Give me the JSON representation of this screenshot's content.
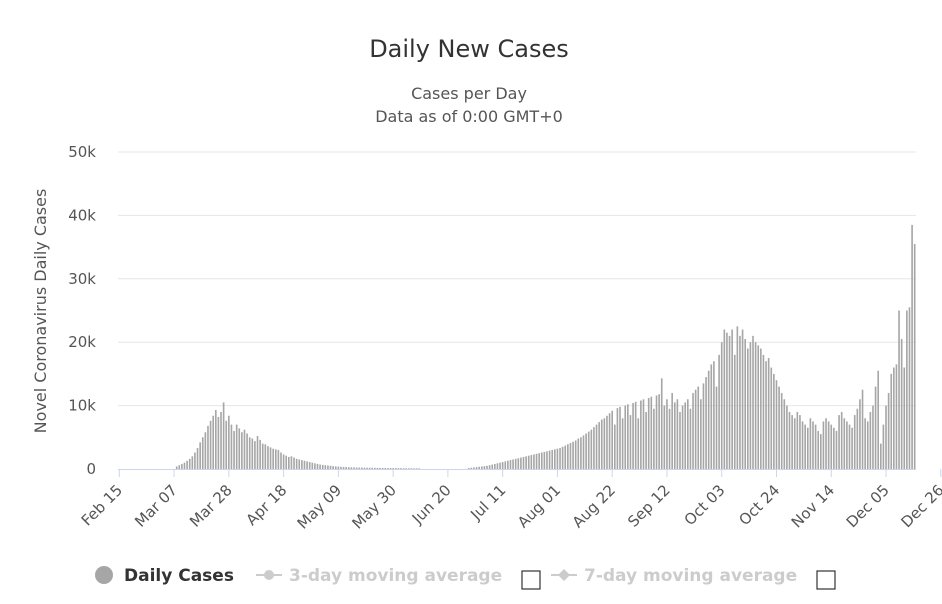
{
  "chart_data": {
    "type": "bar",
    "title": "Daily New Cases",
    "subtitle_lines": [
      "Cases per Day",
      "Data as of 0:00 GMT+0"
    ],
    "ylabel": "Novel Coronavirus Daily Cases",
    "xlabel": "",
    "ylim": [
      0,
      50000
    ],
    "yticks": [
      0,
      10000,
      20000,
      30000,
      40000,
      50000
    ],
    "ytick_labels": [
      "0",
      "10k",
      "20k",
      "30k",
      "40k",
      "50k"
    ],
    "xtick_labels": [
      "Feb 15",
      "Mar 07",
      "Mar 28",
      "Apr 18",
      "May 09",
      "May 30",
      "Jun 20",
      "Jul 11",
      "Aug 01",
      "Aug 22",
      "Sep 12",
      "Oct 03",
      "Oct 24",
      "Nov 14",
      "Dec 05",
      "Dec 26"
    ],
    "xtick_interval_days": 21,
    "grid": true,
    "legend_position": "bottom",
    "colors": {
      "bars": "#a6a6a6",
      "grid": "#e6e6e6",
      "axis": "#ccd6eb",
      "legend_active": "#333333",
      "legend_inactive": "#cccccc"
    },
    "series": [
      {
        "name": "Daily Cases",
        "start_date": "Feb 15",
        "values": [
          0,
          0,
          0,
          0,
          0,
          0,
          0,
          0,
          0,
          0,
          0,
          0,
          0,
          0,
          0,
          0,
          0,
          0,
          0,
          0,
          0,
          0,
          400,
          600,
          800,
          1000,
          1300,
          1600,
          2000,
          2600,
          3300,
          4200,
          5000,
          5800,
          6800,
          7600,
          8400,
          9300,
          8200,
          9000,
          10500,
          7600,
          8400,
          7000,
          6000,
          7000,
          6400,
          5800,
          6200,
          5600,
          5000,
          4800,
          4400,
          5200,
          4600,
          4000,
          3900,
          3600,
          3400,
          3200,
          3100,
          3000,
          2600,
          2300,
          2100,
          1900,
          2000,
          1800,
          1600,
          1500,
          1400,
          1300,
          1200,
          1100,
          1000,
          900,
          800,
          700,
          650,
          600,
          550,
          500,
          450,
          400,
          380,
          350,
          320,
          300,
          280,
          260,
          250,
          240,
          230,
          220,
          210,
          200,
          200,
          190,
          180,
          170,
          170,
          160,
          160,
          150,
          150,
          140,
          140,
          130,
          130,
          120,
          120,
          110,
          110,
          110,
          100,
          100,
          0,
          0,
          0,
          0,
          0,
          0,
          0,
          0,
          0,
          0,
          0,
          0,
          0,
          0,
          0,
          0,
          0,
          0,
          150,
          200,
          250,
          300,
          350,
          400,
          450,
          500,
          600,
          700,
          800,
          900,
          1000,
          1100,
          1200,
          1300,
          1400,
          1500,
          1600,
          1700,
          1800,
          1900,
          2000,
          2100,
          2200,
          2300,
          2400,
          2500,
          2600,
          2700,
          2800,
          2900,
          3000,
          3100,
          3200,
          3300,
          3500,
          3700,
          3900,
          4100,
          4300,
          4500,
          4800,
          5000,
          5300,
          5600,
          5900,
          6200,
          6600,
          7000,
          7400,
          7800,
          8000,
          8400,
          8800,
          9200,
          7000,
          9600,
          9800,
          8000,
          10000,
          10200,
          8500,
          10400,
          10600,
          8000,
          10800,
          11000,
          9000,
          11200,
          11400,
          9500,
          11600,
          11800,
          14300,
          10000,
          11000,
          9500,
          12000,
          10500,
          11000,
          9000,
          10000,
          10500,
          11000,
          9500,
          12000,
          12500,
          13000,
          11000,
          13500,
          14500,
          15500,
          16500,
          17000,
          13000,
          18000,
          20000,
          22000,
          21500,
          21000,
          22000,
          18000,
          22500,
          21000,
          22000,
          20500,
          19000,
          20000,
          21000,
          20000,
          19500,
          19000,
          18000,
          17000,
          17500,
          16000,
          15000,
          14000,
          13000,
          12000,
          11000,
          10000,
          9000,
          8500,
          8000,
          9000,
          8500,
          7500,
          7000,
          6500,
          8000,
          7500,
          7000,
          6000,
          5500,
          7500,
          8000,
          7500,
          7000,
          6500,
          6000,
          8500,
          9000,
          8000,
          7500,
          7000,
          6500,
          8500,
          9500,
          11000,
          12500,
          8000,
          7500,
          9000,
          10000,
          13000,
          15500,
          4000,
          7000,
          10000,
          12000,
          15000,
          16000,
          16500,
          25000,
          20500,
          16000,
          25000,
          25500,
          38500,
          35500
        ]
      },
      {
        "name": "3-day moving average"
      },
      {
        "name": "7-day moving average"
      }
    ]
  }
}
